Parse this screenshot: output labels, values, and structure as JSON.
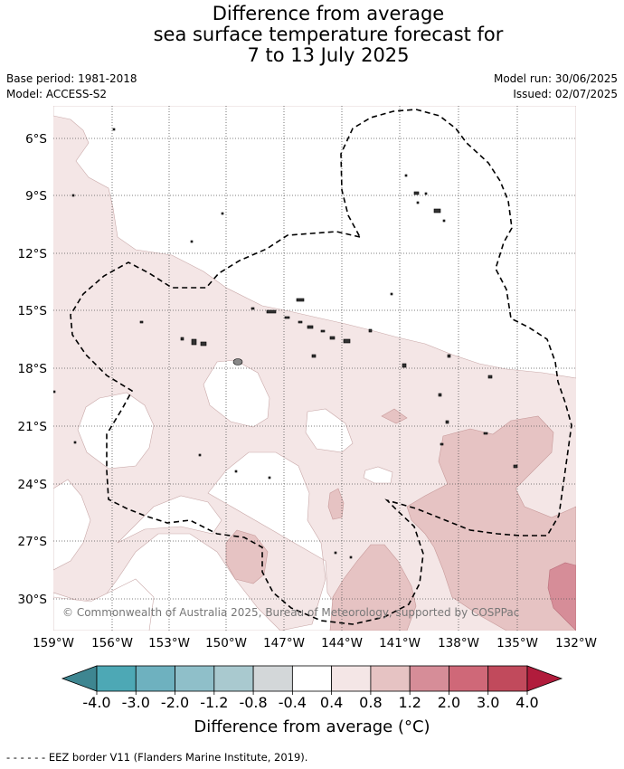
{
  "title": {
    "line1": "Difference from average",
    "line2": "sea surface temperature forecast for",
    "line3": "7 to 13 July 2025"
  },
  "meta": {
    "base_period": "Base period: 1981-2018",
    "model": "Model: ACCESS-S2",
    "model_run": "Model run: 30/06/2025",
    "issued": "Issued: 02/07/2025"
  },
  "map": {
    "lon_labels": [
      "159°W",
      "156°W",
      "153°W",
      "150°W",
      "147°W",
      "144°W",
      "141°W",
      "138°W",
      "135°W",
      "132°W"
    ],
    "lat_labels": [
      "6°S",
      "9°S",
      "12°S",
      "15°S",
      "18°S",
      "21°S",
      "24°S",
      "27°S",
      "30°S"
    ],
    "copyright": "© Commonwealth of Australia 2025, Bureau of Meteorology, supported by COSPPac",
    "colors": {
      "anomaly_0_4_0_8": "#f4e6e6",
      "anomaly_0_8_1_2": "#e6c3c3",
      "anomaly_1_2_2_0": "#d68d98",
      "grid": "#555555",
      "eez_border": "#000000"
    }
  },
  "colorbar": {
    "tick_labels": [
      "-4.0",
      "-3.0",
      "-2.0",
      "-1.2",
      "-0.8",
      "-0.4",
      "0.4",
      "0.8",
      "1.2",
      "2.0",
      "3.0",
      "4.0"
    ],
    "colors": [
      "#3e8691",
      "#4da8b5",
      "#6eb1bf",
      "#8fbfc9",
      "#a9c9cf",
      "#d3d7d9",
      "#ffffff",
      "#f4e6e6",
      "#e6c3c3",
      "#d68d98",
      "#cf6878",
      "#c14a5c",
      "#b11c3c"
    ],
    "label": "Difference from average (°C)"
  },
  "footer": "- -  - -  - - EEZ border V11 (Flanders Marine Institute, 2019)."
}
